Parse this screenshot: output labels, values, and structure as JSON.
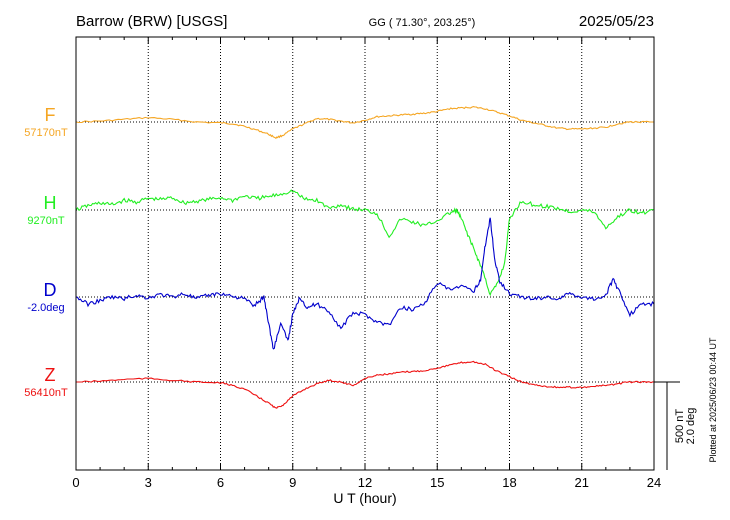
{
  "header": {
    "station": "Barrow (BRW)  [USGS]",
    "coords": "GG ( 71.30°, 203.25°)",
    "date": "2025/05/23"
  },
  "footnote": "Plotted at 2025/06/23 00:44 UT",
  "scale_bar": {
    "line1": "500 nT",
    "line2": "2.0 deg"
  },
  "chart_data": {
    "type": "line",
    "xlabel": "U T (hour)",
    "xlim": [
      0,
      24
    ],
    "xticks": [
      "0",
      "3",
      "6",
      "9",
      "12",
      "15",
      "18",
      "21",
      "24"
    ],
    "grid": true,
    "series": [
      {
        "name": "F",
        "baseline_label": "57170nT",
        "color": "#f5a623",
        "x": [
          0,
          1,
          2,
          3,
          4,
          5,
          6,
          6.5,
          7,
          7.5,
          8,
          8.3,
          8.6,
          9,
          9.5,
          10,
          10.5,
          11,
          11.5,
          12,
          12.5,
          13,
          13.5,
          14,
          14.5,
          15,
          15.5,
          16,
          16.5,
          17,
          17.5,
          18,
          18.5,
          19,
          19.5,
          20,
          20.5,
          21,
          21.5,
          22,
          22.5,
          23,
          23.5,
          24
        ],
        "values": [
          0,
          5,
          15,
          25,
          15,
          0,
          -5,
          -10,
          -25,
          -45,
          -70,
          -90,
          -75,
          -40,
          -10,
          20,
          15,
          5,
          -5,
          10,
          30,
          35,
          40,
          45,
          50,
          60,
          75,
          80,
          85,
          75,
          55,
          35,
          10,
          -5,
          -20,
          -35,
          -40,
          -40,
          -35,
          -30,
          -10,
          0,
          0,
          0
        ]
      },
      {
        "name": "H",
        "baseline_label": "9270nT",
        "color": "#22ee22",
        "x": [
          0,
          0.5,
          1,
          1.5,
          2,
          2.5,
          3,
          3.5,
          4,
          4.5,
          5,
          5.5,
          6,
          6.5,
          7,
          7.5,
          8,
          8.5,
          9,
          9.5,
          10,
          10.5,
          11,
          11.5,
          12,
          12.5,
          13,
          13.5,
          14,
          14.5,
          15,
          15.5,
          15.8,
          16,
          16.3,
          16.6,
          16.9,
          17.2,
          17.5,
          17.8,
          18,
          18.5,
          19,
          19.5,
          20,
          20.5,
          21,
          21.5,
          22,
          22.5,
          23,
          23.5,
          24
        ],
        "values": [
          0,
          25,
          40,
          30,
          55,
          45,
          65,
          60,
          70,
          40,
          50,
          60,
          70,
          55,
          80,
          65,
          75,
          90,
          110,
          60,
          55,
          10,
          30,
          5,
          0,
          -20,
          -150,
          -50,
          -70,
          -90,
          -60,
          -20,
          0,
          -50,
          -150,
          -250,
          -350,
          -480,
          -420,
          -300,
          -50,
          50,
          30,
          20,
          10,
          -10,
          0,
          -10,
          -100,
          -40,
          0,
          -20,
          0
        ]
      },
      {
        "name": "D",
        "baseline_label": "-2.0deg",
        "color": "#0000cc",
        "x": [
          0,
          0.5,
          1,
          1.5,
          2,
          2.5,
          3,
          3.5,
          4,
          4.5,
          5,
          5.5,
          6,
          6.5,
          7,
          7.4,
          7.8,
          8,
          8.2,
          8.5,
          8.8,
          9,
          9.3,
          9.6,
          10,
          10.5,
          11,
          11.5,
          12,
          12.5,
          13,
          13.5,
          14,
          14.5,
          15,
          15.5,
          16,
          16.5,
          16.8,
          17,
          17.2,
          17.4,
          17.6,
          18,
          18.5,
          19,
          19.5,
          20,
          20.5,
          21,
          21.5,
          22,
          22.3,
          22.6,
          23,
          23.5,
          24
        ],
        "values": [
          0,
          -40,
          -20,
          0,
          -10,
          10,
          -5,
          15,
          0,
          20,
          -10,
          10,
          20,
          5,
          -10,
          -50,
          0,
          -150,
          -300,
          -150,
          -250,
          -100,
          0,
          -60,
          -40,
          -80,
          -180,
          -90,
          -100,
          -140,
          -160,
          -60,
          -70,
          -30,
          80,
          40,
          60,
          30,
          100,
          300,
          450,
          200,
          90,
          20,
          0,
          -10,
          0,
          -10,
          20,
          0,
          -10,
          10,
          100,
          20,
          -100,
          -40,
          -40
        ]
      },
      {
        "name": "Z",
        "baseline_label": "56410nT",
        "color": "#ee1111",
        "x": [
          0,
          1,
          2,
          3,
          4,
          5,
          6,
          6.5,
          7,
          7.5,
          8,
          8.3,
          8.6,
          9,
          9.5,
          10,
          10.5,
          11,
          11.5,
          12,
          12.5,
          13,
          13.5,
          14,
          14.5,
          15,
          15.5,
          16,
          16.5,
          17,
          17.5,
          18,
          18.5,
          19,
          19.5,
          20,
          20.5,
          21,
          21.5,
          22,
          22.5,
          23,
          23.5,
          24
        ],
        "values": [
          0,
          5,
          15,
          20,
          10,
          0,
          -5,
          -20,
          -40,
          -80,
          -120,
          -150,
          -130,
          -80,
          -40,
          -10,
          10,
          0,
          -20,
          20,
          40,
          45,
          55,
          60,
          65,
          80,
          95,
          110,
          115,
          100,
          60,
          30,
          0,
          -15,
          -25,
          -30,
          -30,
          -30,
          -25,
          -20,
          -10,
          0,
          0,
          0
        ]
      }
    ]
  }
}
